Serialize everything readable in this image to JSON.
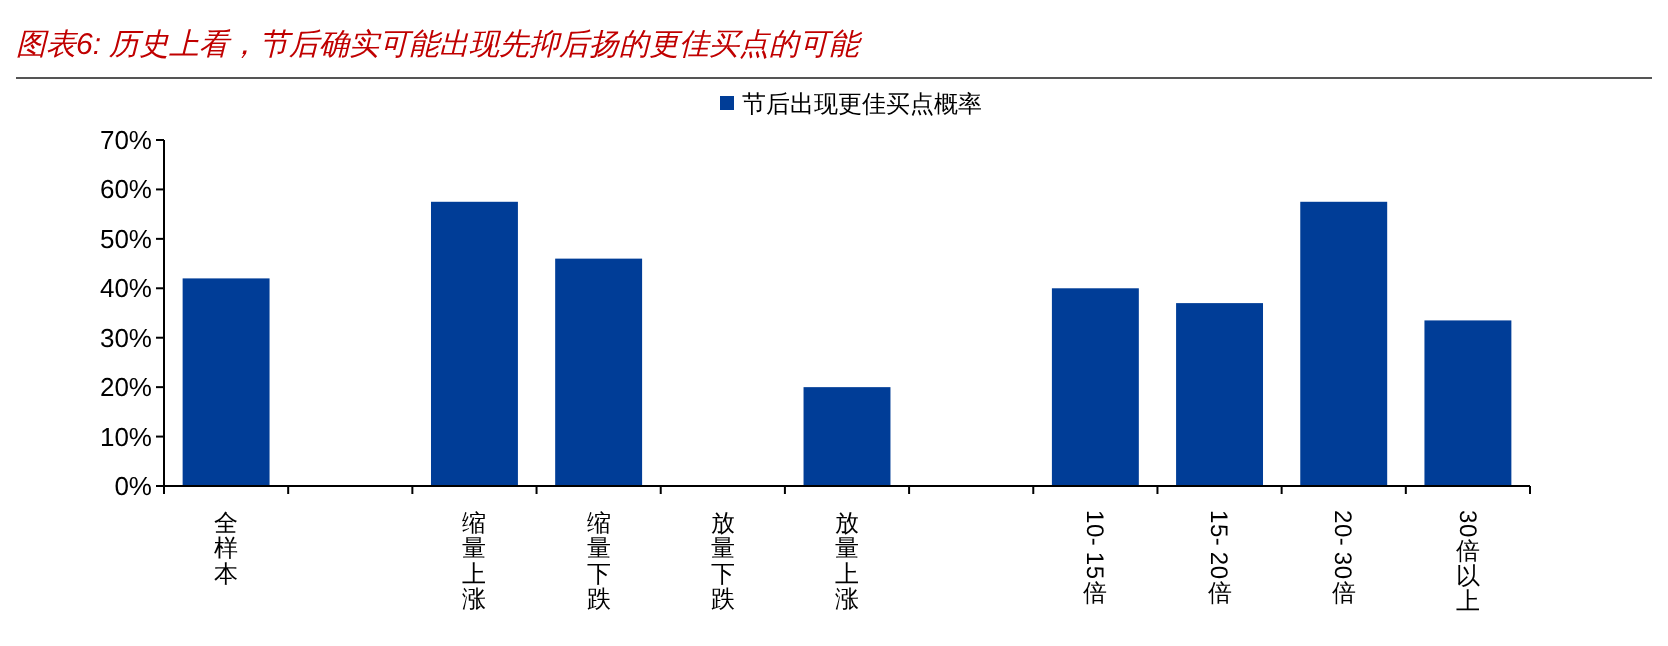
{
  "chart_data": {
    "type": "bar",
    "title": "图表6:  历史上看，节后确实可能出现先抑后扬的更佳买点的可能",
    "categories": [
      "全样本",
      null,
      "缩量上涨",
      "缩量下跌",
      "放量下跌",
      "放量上涨",
      null,
      "10-15倍",
      "15-20倍",
      "20-30倍",
      "30倍以上"
    ],
    "series": [
      {
        "name": "节后出现更佳买点概率",
        "color": "#003d97",
        "values": [
          42,
          null,
          57.5,
          46,
          0,
          20,
          null,
          40,
          37,
          57.5,
          33.5
        ]
      }
    ],
    "ylim": [
      0,
      70
    ],
    "yticks": [
      {
        "value": 0,
        "label": "0%"
      },
      {
        "value": 10,
        "label": "10%"
      },
      {
        "value": 20,
        "label": "20%"
      },
      {
        "value": 30,
        "label": "30%"
      },
      {
        "value": 40,
        "label": "40%"
      },
      {
        "value": 50,
        "label": "50%"
      },
      {
        "value": 60,
        "label": "60%"
      },
      {
        "value": 70,
        "label": "70%"
      }
    ],
    "legend": "top",
    "grid": false
  }
}
